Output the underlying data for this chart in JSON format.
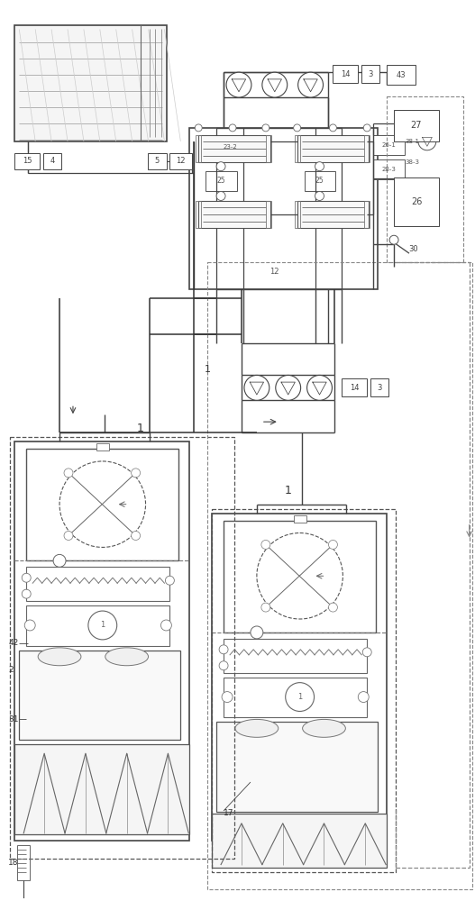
{
  "bg_color": "#ffffff",
  "lc": "#555555",
  "lc_dark": "#333333",
  "lc_light": "#777777",
  "fig_width": 5.27,
  "fig_height": 10.0,
  "dpi": 100
}
